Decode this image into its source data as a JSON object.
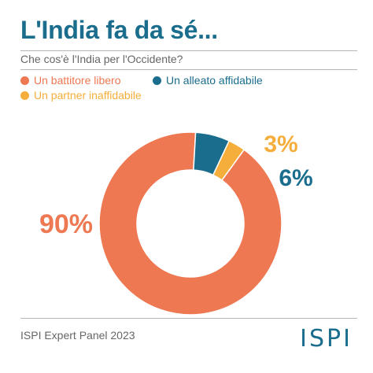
{
  "header": {
    "title": "L'India fa da sé...",
    "subtitle": "Che cos'è l'India per l'Occidente?"
  },
  "legend": {
    "items": [
      {
        "label": "Un battitore libero",
        "color": "#ee7852"
      },
      {
        "label": "Un alleato affidabile",
        "color": "#1a6d8c"
      },
      {
        "label": "Un partner inaffidabile",
        "color": "#f5ae3b"
      }
    ]
  },
  "chart_data": {
    "type": "pie",
    "categories": [
      "Un battitore libero",
      "Un alleato affidabile",
      "Un partner inaffidabile"
    ],
    "values": [
      90,
      6,
      3
    ],
    "labels": [
      "90%",
      "6%",
      "3%"
    ],
    "colors": [
      "#ee7852",
      "#1a6d8c",
      "#f5ae3b"
    ],
    "donut": true
  },
  "footer": {
    "source": "ISPI Expert Panel 2023",
    "logo": "ISPI"
  }
}
